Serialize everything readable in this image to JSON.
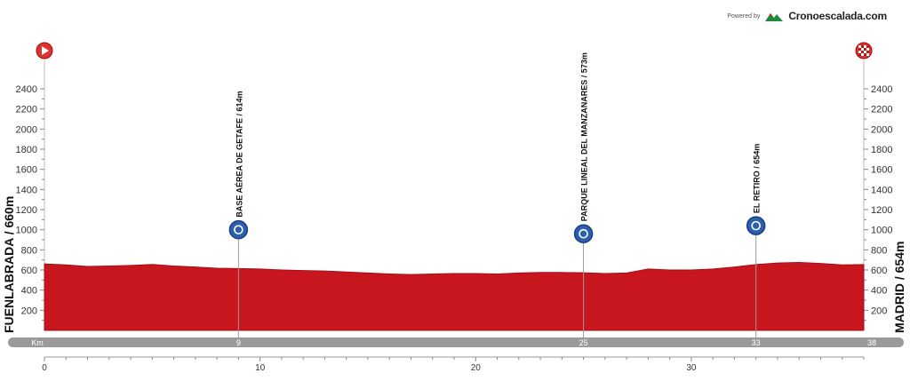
{
  "brand": {
    "powered_by": "Powered by",
    "name": "Cronoescalada.com"
  },
  "chart_data": {
    "type": "area",
    "title": "",
    "start_label": "FUENLABRADA / 660m",
    "finish_label": "MADRID / 654m",
    "distance_unit_label": "Km",
    "ylim": [
      0,
      2400
    ],
    "y_ticks": [
      200,
      400,
      600,
      800,
      1000,
      1200,
      1400,
      1600,
      1800,
      2000,
      2200,
      2400
    ],
    "xlim": [
      0,
      38
    ],
    "x_ticks": [
      0,
      10,
      20,
      30
    ],
    "grid": false,
    "series": [
      {
        "x": [
          0,
          1,
          2,
          3,
          4,
          5,
          6,
          7,
          8,
          9,
          10,
          11,
          12,
          13,
          14,
          15,
          16,
          17,
          18,
          19,
          20,
          21,
          22,
          23,
          24,
          25,
          26,
          27,
          28,
          29,
          30,
          31,
          32,
          33,
          34,
          35,
          36,
          37,
          38
        ],
        "y": [
          660,
          650,
          635,
          640,
          645,
          655,
          640,
          630,
          618,
          614,
          610,
          600,
          595,
          590,
          580,
          570,
          560,
          555,
          560,
          565,
          565,
          560,
          570,
          575,
          575,
          573,
          565,
          570,
          610,
          600,
          600,
          610,
          630,
          654,
          670,
          675,
          665,
          650,
          654
        ]
      }
    ],
    "waypoints": [
      {
        "name": "BASE AÉREA DE GETAFE / 614m",
        "km": 9,
        "elevation": 614,
        "marker_y": 1000,
        "axis_label": "9"
      },
      {
        "name": "PARQUE LINEAL DEL MANZANARES / 573m",
        "km": 25,
        "elevation": 573,
        "marker_y": 960,
        "axis_label": "25"
      },
      {
        "name": "EL RETIRO / 654m",
        "km": 33,
        "elevation": 654,
        "marker_y": 1040,
        "axis_label": "33"
      }
    ],
    "finish_axis_label": "38",
    "colors": {
      "fill": "#c8161e",
      "edge": "#a50f16",
      "marker": "#2d5fb0",
      "bar": "#9a9a9a",
      "start_icon": "#e03030",
      "finish_icon": "#e03030"
    }
  }
}
